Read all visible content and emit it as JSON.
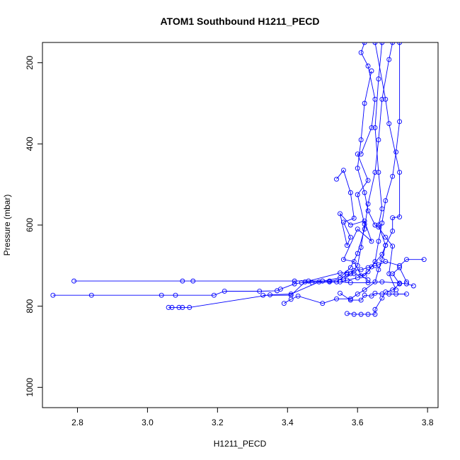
{
  "chart_data": {
    "type": "scatter",
    "title": "ATOM1 Southbound H1211_PECD",
    "xlabel": "H1211_PECD",
    "ylabel": "Pressure (mbar)",
    "xlim": [
      2.7,
      3.83
    ],
    "ylim": [
      1050,
      150
    ],
    "y_axis_reversed": true,
    "x_ticks": [
      "2.8",
      "3.0",
      "3.2",
      "3.4",
      "3.6",
      "3.8"
    ],
    "y_ticks": [
      "200",
      "400",
      "600",
      "800",
      "1000"
    ],
    "grid": false,
    "legend": "none",
    "style": "points connected by lines",
    "color": "#0000ff",
    "series": [
      {
        "points": [
          {
            "x": 2.79,
            "y": 738
          },
          {
            "x": 3.1,
            "y": 738
          },
          {
            "x": 3.13,
            "y": 738
          },
          {
            "x": 3.5,
            "y": 738
          },
          {
            "x": 3.58,
            "y": 742
          },
          {
            "x": 3.63,
            "y": 742
          },
          {
            "x": 3.67,
            "y": 740
          },
          {
            "x": 3.72,
            "y": 743
          },
          {
            "x": 3.74,
            "y": 745
          },
          {
            "x": 3.76,
            "y": 750
          }
        ]
      },
      {
        "points": [
          {
            "x": 2.73,
            "y": 773
          },
          {
            "x": 2.84,
            "y": 773
          },
          {
            "x": 3.04,
            "y": 773
          },
          {
            "x": 3.08,
            "y": 773
          },
          {
            "x": 3.19,
            "y": 773
          },
          {
            "x": 3.22,
            "y": 763
          },
          {
            "x": 3.32,
            "y": 763
          },
          {
            "x": 3.37,
            "y": 762
          },
          {
            "x": 3.38,
            "y": 758
          },
          {
            "x": 3.42,
            "y": 745
          },
          {
            "x": 3.44,
            "y": 742
          },
          {
            "x": 3.47,
            "y": 742
          },
          {
            "x": 3.55,
            "y": 740
          },
          {
            "x": 3.57,
            "y": 736
          },
          {
            "x": 3.6,
            "y": 730
          },
          {
            "x": 3.63,
            "y": 715
          },
          {
            "x": 3.65,
            "y": 690
          },
          {
            "x": 3.66,
            "y": 640
          },
          {
            "x": 3.67,
            "y": 595
          },
          {
            "x": 3.68,
            "y": 540
          },
          {
            "x": 3.7,
            "y": 480
          },
          {
            "x": 3.71,
            "y": 420
          },
          {
            "x": 3.72,
            "y": 345
          },
          {
            "x": 3.72,
            "y": 150
          }
        ]
      },
      {
        "points": [
          {
            "x": 3.06,
            "y": 803
          },
          {
            "x": 3.07,
            "y": 803
          },
          {
            "x": 3.09,
            "y": 803
          },
          {
            "x": 3.1,
            "y": 803
          },
          {
            "x": 3.12,
            "y": 803
          },
          {
            "x": 3.35,
            "y": 772
          },
          {
            "x": 3.41,
            "y": 770
          },
          {
            "x": 3.49,
            "y": 740
          },
          {
            "x": 3.55,
            "y": 730
          },
          {
            "x": 3.58,
            "y": 705
          },
          {
            "x": 3.6,
            "y": 670
          },
          {
            "x": 3.62,
            "y": 610
          },
          {
            "x": 3.63,
            "y": 548
          },
          {
            "x": 3.65,
            "y": 470
          },
          {
            "x": 3.66,
            "y": 390
          },
          {
            "x": 3.67,
            "y": 290
          },
          {
            "x": 3.69,
            "y": 192
          },
          {
            "x": 3.7,
            "y": 150
          }
        ]
      },
      {
        "points": [
          {
            "x": 3.33,
            "y": 773
          },
          {
            "x": 3.41,
            "y": 773
          },
          {
            "x": 3.45,
            "y": 740
          },
          {
            "x": 3.52,
            "y": 738
          },
          {
            "x": 3.56,
            "y": 733
          },
          {
            "x": 3.58,
            "y": 720
          },
          {
            "x": 3.6,
            "y": 700
          },
          {
            "x": 3.61,
            "y": 655
          },
          {
            "x": 3.62,
            "y": 598
          },
          {
            "x": 3.6,
            "y": 525
          },
          {
            "x": 3.63,
            "y": 490
          },
          {
            "x": 3.6,
            "y": 425
          },
          {
            "x": 3.61,
            "y": 425
          },
          {
            "x": 3.64,
            "y": 360
          },
          {
            "x": 3.65,
            "y": 290
          },
          {
            "x": 3.63,
            "y": 208
          },
          {
            "x": 3.61,
            "y": 175
          },
          {
            "x": 3.62,
            "y": 150
          }
        ]
      },
      {
        "points": [
          {
            "x": 3.39,
            "y": 793
          },
          {
            "x": 3.41,
            "y": 783
          },
          {
            "x": 3.43,
            "y": 775
          },
          {
            "x": 3.5,
            "y": 793
          },
          {
            "x": 3.54,
            "y": 782
          },
          {
            "x": 3.58,
            "y": 782
          },
          {
            "x": 3.6,
            "y": 770
          },
          {
            "x": 3.62,
            "y": 760
          },
          {
            "x": 3.65,
            "y": 740
          },
          {
            "x": 3.66,
            "y": 710
          },
          {
            "x": 3.67,
            "y": 685
          },
          {
            "x": 3.68,
            "y": 650
          },
          {
            "x": 3.7,
            "y": 615
          },
          {
            "x": 3.7,
            "y": 582
          },
          {
            "x": 3.72,
            "y": 580
          },
          {
            "x": 3.72,
            "y": 470
          },
          {
            "x": 3.69,
            "y": 350
          },
          {
            "x": 3.68,
            "y": 290
          },
          {
            "x": 3.65,
            "y": 150
          }
        ]
      },
      {
        "points": [
          {
            "x": 3.42,
            "y": 738
          },
          {
            "x": 3.46,
            "y": 738
          },
          {
            "x": 3.55,
            "y": 718
          },
          {
            "x": 3.57,
            "y": 718
          },
          {
            "x": 3.59,
            "y": 712
          },
          {
            "x": 3.61,
            "y": 710
          },
          {
            "x": 3.63,
            "y": 705
          },
          {
            "x": 3.65,
            "y": 700
          },
          {
            "x": 3.66,
            "y": 698
          },
          {
            "x": 3.68,
            "y": 690
          },
          {
            "x": 3.72,
            "y": 700
          },
          {
            "x": 3.74,
            "y": 685
          },
          {
            "x": 3.79,
            "y": 685
          }
        ]
      },
      {
        "points": [
          {
            "x": 3.52,
            "y": 740
          },
          {
            "x": 3.54,
            "y": 740
          },
          {
            "x": 3.57,
            "y": 722
          },
          {
            "x": 3.59,
            "y": 720
          },
          {
            "x": 3.62,
            "y": 725
          },
          {
            "x": 3.64,
            "y": 703
          },
          {
            "x": 3.67,
            "y": 672
          },
          {
            "x": 3.68,
            "y": 650
          },
          {
            "x": 3.66,
            "y": 600
          },
          {
            "x": 3.67,
            "y": 560
          },
          {
            "x": 3.66,
            "y": 470
          },
          {
            "x": 3.65,
            "y": 360
          },
          {
            "x": 3.66,
            "y": 240
          },
          {
            "x": 3.67,
            "y": 150
          }
        ]
      },
      {
        "points": [
          {
            "x": 3.55,
            "y": 768
          },
          {
            "x": 3.58,
            "y": 785
          },
          {
            "x": 3.61,
            "y": 785
          },
          {
            "x": 3.62,
            "y": 773
          },
          {
            "x": 3.64,
            "y": 775
          },
          {
            "x": 3.65,
            "y": 768
          },
          {
            "x": 3.67,
            "y": 770
          },
          {
            "x": 3.69,
            "y": 770
          },
          {
            "x": 3.71,
            "y": 770
          },
          {
            "x": 3.74,
            "y": 770
          }
        ]
      },
      {
        "points": [
          {
            "x": 3.57,
            "y": 818
          },
          {
            "x": 3.59,
            "y": 820
          },
          {
            "x": 3.61,
            "y": 820
          },
          {
            "x": 3.63,
            "y": 820
          },
          {
            "x": 3.65,
            "y": 820
          },
          {
            "x": 3.65,
            "y": 808
          },
          {
            "x": 3.67,
            "y": 780
          },
          {
            "x": 3.68,
            "y": 765
          },
          {
            "x": 3.7,
            "y": 760
          },
          {
            "x": 3.72,
            "y": 745
          },
          {
            "x": 3.7,
            "y": 720
          },
          {
            "x": 3.72,
            "y": 705
          },
          {
            "x": 3.74,
            "y": 740
          }
        ]
      },
      {
        "points": [
          {
            "x": 3.54,
            "y": 487
          },
          {
            "x": 3.56,
            "y": 465
          },
          {
            "x": 3.58,
            "y": 520
          },
          {
            "x": 3.59,
            "y": 583
          },
          {
            "x": 3.56,
            "y": 593
          },
          {
            "x": 3.58,
            "y": 630
          },
          {
            "x": 3.57,
            "y": 650
          },
          {
            "x": 3.55,
            "y": 572
          },
          {
            "x": 3.58,
            "y": 600
          },
          {
            "x": 3.62,
            "y": 590
          },
          {
            "x": 3.64,
            "y": 640
          },
          {
            "x": 3.6,
            "y": 610
          },
          {
            "x": 3.56,
            "y": 685
          },
          {
            "x": 3.59,
            "y": 690
          },
          {
            "x": 3.61,
            "y": 725
          },
          {
            "x": 3.63,
            "y": 735
          }
        ]
      },
      {
        "points": [
          {
            "x": 3.64,
            "y": 220
          },
          {
            "x": 3.62,
            "y": 300
          },
          {
            "x": 3.61,
            "y": 390
          },
          {
            "x": 3.6,
            "y": 460
          },
          {
            "x": 3.62,
            "y": 520
          },
          {
            "x": 3.63,
            "y": 565
          },
          {
            "x": 3.65,
            "y": 600
          },
          {
            "x": 3.66,
            "y": 605
          },
          {
            "x": 3.68,
            "y": 630
          },
          {
            "x": 3.7,
            "y": 652
          },
          {
            "x": 3.69,
            "y": 720
          },
          {
            "x": 3.71,
            "y": 760
          }
        ]
      }
    ]
  }
}
